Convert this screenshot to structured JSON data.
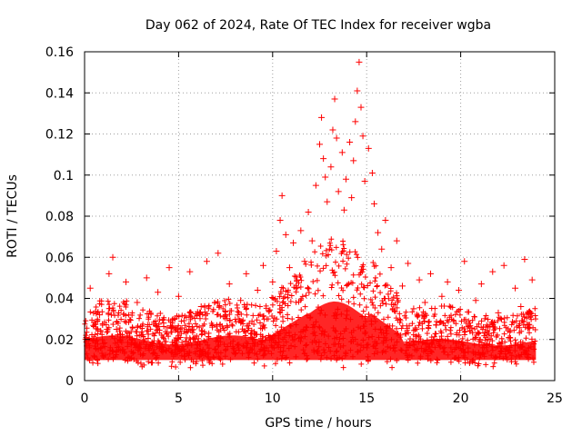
{
  "chart_data": {
    "type": "scatter",
    "title": "Day 062 of 2024, Rate Of TEC Index for receiver wgba",
    "xlabel": "GPS time / hours",
    "ylabel": "ROTI / TECUs",
    "xlim": [
      0,
      25
    ],
    "ylim": [
      0,
      0.16
    ],
    "xticks": [
      0,
      5,
      10,
      15,
      20,
      25
    ],
    "xtick_labels": [
      "0",
      "5",
      "10",
      "15",
      "20",
      "25"
    ],
    "yticks": [
      0,
      0.02,
      0.04,
      0.06,
      0.08,
      0.1,
      0.12,
      0.14,
      0.16
    ],
    "ytick_labels": [
      "0",
      "0.02",
      "0.04",
      "0.06",
      "0.08",
      "0.1",
      "0.12",
      "0.14",
      "0.16"
    ],
    "grid": true,
    "marker": "+",
    "color": "#ff0000",
    "series": [
      {
        "name": "ROTI",
        "points": [
          [
            0.1,
            0.021
          ],
          [
            0.3,
            0.045
          ],
          [
            0.5,
            0.012
          ],
          [
            0.8,
            0.032
          ],
          [
            1.0,
            0.018
          ],
          [
            1.3,
            0.052
          ],
          [
            1.5,
            0.06
          ],
          [
            1.7,
            0.025
          ],
          [
            2.0,
            0.015
          ],
          [
            2.2,
            0.048
          ],
          [
            2.5,
            0.011
          ],
          [
            2.8,
            0.038
          ],
          [
            3.0,
            0.022
          ],
          [
            3.3,
            0.05
          ],
          [
            3.6,
            0.017
          ],
          [
            3.9,
            0.043
          ],
          [
            4.2,
            0.028
          ],
          [
            4.5,
            0.055
          ],
          [
            4.8,
            0.014
          ],
          [
            5.0,
            0.041
          ],
          [
            5.3,
            0.024
          ],
          [
            5.6,
            0.053
          ],
          [
            5.9,
            0.019
          ],
          [
            6.2,
            0.036
          ],
          [
            6.5,
            0.058
          ],
          [
            6.8,
            0.026
          ],
          [
            7.1,
            0.062
          ],
          [
            7.4,
            0.031
          ],
          [
            7.7,
            0.047
          ],
          [
            8.0,
            0.013
          ],
          [
            8.3,
            0.039
          ],
          [
            8.6,
            0.052
          ],
          [
            8.9,
            0.023
          ],
          [
            9.2,
            0.044
          ],
          [
            9.5,
            0.056
          ],
          [
            9.8,
            0.034
          ],
          [
            10.0,
            0.048
          ],
          [
            10.2,
            0.063
          ],
          [
            10.4,
            0.078
          ],
          [
            10.5,
            0.09
          ],
          [
            10.7,
            0.071
          ],
          [
            10.9,
            0.055
          ],
          [
            11.1,
            0.067
          ],
          [
            11.3,
            0.049
          ],
          [
            11.5,
            0.073
          ],
          [
            11.7,
            0.058
          ],
          [
            11.9,
            0.082
          ],
          [
            12.1,
            0.068
          ],
          [
            12.3,
            0.095
          ],
          [
            12.5,
            0.115
          ],
          [
            12.6,
            0.128
          ],
          [
            12.7,
            0.108
          ],
          [
            12.8,
            0.099
          ],
          [
            12.9,
            0.087
          ],
          [
            13.1,
            0.104
          ],
          [
            13.2,
            0.122
          ],
          [
            13.3,
            0.137
          ],
          [
            13.4,
            0.118
          ],
          [
            13.5,
            0.092
          ],
          [
            13.7,
            0.111
          ],
          [
            13.8,
            0.083
          ],
          [
            13.9,
            0.098
          ],
          [
            14.1,
            0.116
          ],
          [
            14.2,
            0.089
          ],
          [
            14.3,
            0.107
          ],
          [
            14.4,
            0.126
          ],
          [
            14.5,
            0.141
          ],
          [
            14.6,
            0.155
          ],
          [
            14.7,
            0.133
          ],
          [
            14.8,
            0.119
          ],
          [
            14.9,
            0.097
          ],
          [
            15.1,
            0.113
          ],
          [
            15.3,
            0.101
          ],
          [
            15.4,
            0.086
          ],
          [
            15.6,
            0.072
          ],
          [
            15.8,
            0.064
          ],
          [
            16.0,
            0.078
          ],
          [
            16.3,
            0.055
          ],
          [
            16.6,
            0.068
          ],
          [
            16.9,
            0.046
          ],
          [
            17.2,
            0.057
          ],
          [
            17.5,
            0.035
          ],
          [
            17.8,
            0.049
          ],
          [
            18.1,
            0.038
          ],
          [
            18.4,
            0.052
          ],
          [
            18.7,
            0.027
          ],
          [
            19.0,
            0.041
          ],
          [
            19.3,
            0.048
          ],
          [
            19.6,
            0.019
          ],
          [
            19.9,
            0.044
          ],
          [
            20.2,
            0.058
          ],
          [
            20.5,
            0.024
          ],
          [
            20.8,
            0.039
          ],
          [
            21.1,
            0.047
          ],
          [
            21.4,
            0.018
          ],
          [
            21.7,
            0.053
          ],
          [
            22.0,
            0.033
          ],
          [
            22.3,
            0.056
          ],
          [
            22.6,
            0.021
          ],
          [
            22.9,
            0.045
          ],
          [
            23.2,
            0.036
          ],
          [
            23.4,
            0.059
          ],
          [
            23.6,
            0.027
          ],
          [
            23.8,
            0.049
          ]
        ]
      }
    ]
  }
}
